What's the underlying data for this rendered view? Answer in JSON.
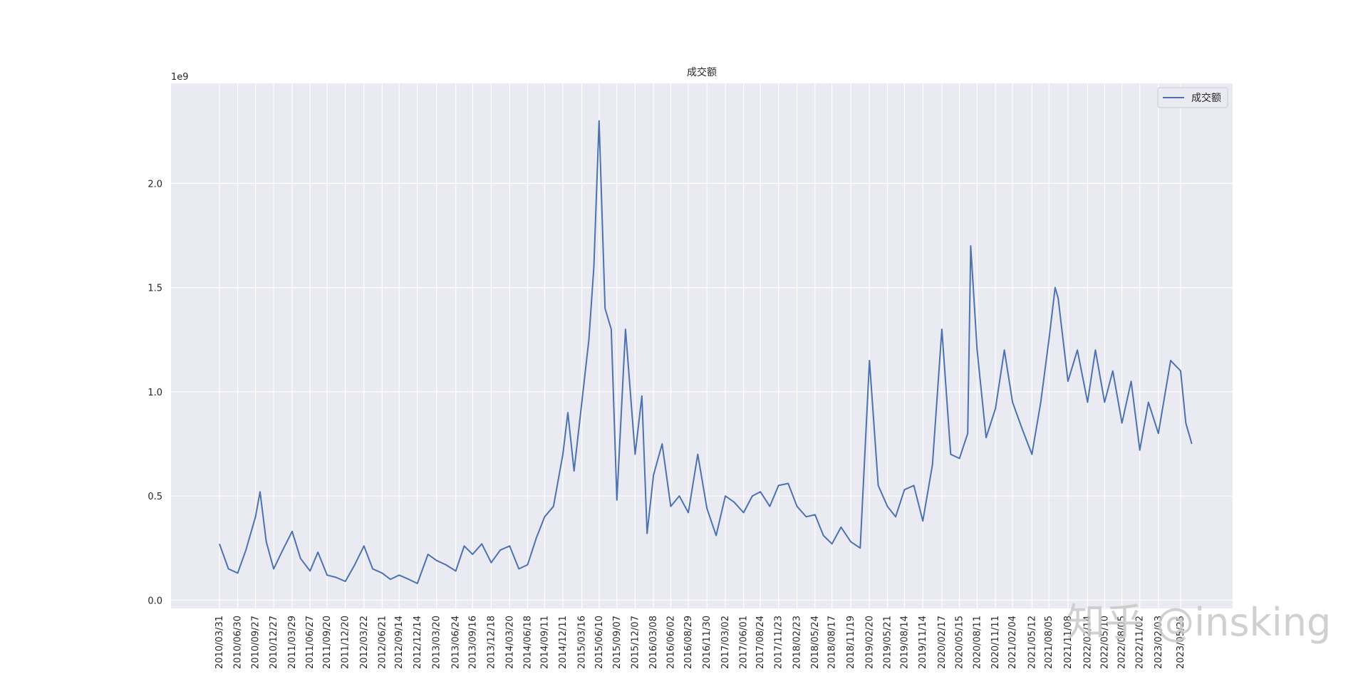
{
  "chart_data": {
    "type": "line",
    "title": "成交额",
    "xlabel": "",
    "ylabel": "",
    "y_offset_label": "1e9",
    "ylim": [
      -0.04,
      2.48
    ],
    "y_ticks": [
      0.0,
      0.5,
      1.0,
      1.5,
      2.0
    ],
    "y_tick_labels": [
      "0.0",
      "0.5",
      "1.0",
      "1.5",
      "2.0"
    ],
    "x_tick_labels": [
      "2010/03/31",
      "2010/06/30",
      "2010/09/27",
      "2010/12/27",
      "2011/03/29",
      "2011/06/27",
      "2011/09/20",
      "2011/12/20",
      "2012/03/22",
      "2012/06/21",
      "2012/09/14",
      "2012/12/14",
      "2013/03/20",
      "2013/06/24",
      "2013/09/16",
      "2013/12/18",
      "2014/03/20",
      "2014/06/18",
      "2014/09/11",
      "2014/12/11",
      "2015/03/16",
      "2015/06/10",
      "2015/09/07",
      "2015/12/07",
      "2016/03/08",
      "2016/06/02",
      "2016/08/29",
      "2016/11/30",
      "2017/03/02",
      "2017/06/01",
      "2017/08/24",
      "2017/11/23",
      "2018/02/23",
      "2018/05/24",
      "2018/08/17",
      "2018/11/19",
      "2019/02/20",
      "2019/05/21",
      "2019/08/14",
      "2019/11/14",
      "2020/02/17",
      "2020/05/15",
      "2020/08/11",
      "2020/11/11",
      "2021/02/04",
      "2021/05/12",
      "2021/08/05",
      "2021/11/08",
      "2022/02/14",
      "2022/05/10",
      "2022/08/05",
      "2022/11/02",
      "2023/02/03",
      "2023/05/25"
    ],
    "grid": true,
    "legend_position": "upper right",
    "series": [
      {
        "name": "成交额",
        "color": "#4c72b0",
        "x": [
          "2010/03/31",
          "2010/05/15",
          "2010/06/30",
          "2010/08/10",
          "2010/09/27",
          "2010/10/20",
          "2010/11/20",
          "2010/12/27",
          "2011/02/10",
          "2011/03/29",
          "2011/05/10",
          "2011/06/27",
          "2011/08/05",
          "2011/09/20",
          "2011/11/01",
          "2011/12/20",
          "2012/02/05",
          "2012/03/22",
          "2012/05/05",
          "2012/06/21",
          "2012/08/01",
          "2012/09/14",
          "2012/11/01",
          "2012/12/14",
          "2013/02/05",
          "2013/03/20",
          "2013/05/05",
          "2013/06/24",
          "2013/08/05",
          "2013/09/16",
          "2013/11/01",
          "2013/12/18",
          "2014/02/01",
          "2014/03/20",
          "2014/05/05",
          "2014/06/18",
          "2014/08/01",
          "2014/09/11",
          "2014/10/25",
          "2014/12/11",
          "2015/01/05",
          "2015/02/05",
          "2015/03/16",
          "2015/04/20",
          "2015/05/15",
          "2015/06/10",
          "2015/07/10",
          "2015/08/10",
          "2015/09/07",
          "2015/10/20",
          "2015/12/07",
          "2016/01/10",
          "2016/02/05",
          "2016/03/08",
          "2016/04/20",
          "2016/06/02",
          "2016/07/15",
          "2016/08/29",
          "2016/10/15",
          "2016/11/30",
          "2017/01/15",
          "2017/03/02",
          "2017/04/15",
          "2017/06/01",
          "2017/07/15",
          "2017/08/24",
          "2017/10/10",
          "2017/11/23",
          "2018/01/10",
          "2018/02/23",
          "2018/04/10",
          "2018/05/24",
          "2018/07/05",
          "2018/08/17",
          "2018/10/01",
          "2018/11/19",
          "2019/01/05",
          "2019/02/20",
          "2019/04/05",
          "2019/05/21",
          "2019/07/01",
          "2019/08/14",
          "2019/09/30",
          "2019/11/14",
          "2020/01/01",
          "2020/02/17",
          "2020/04/01",
          "2020/05/15",
          "2020/06/25",
          "2020/07/10",
          "2020/08/11",
          "2020/09/25",
          "2020/11/11",
          "2020/12/25",
          "2021/02/04",
          "2021/03/25",
          "2021/05/12",
          "2021/06/25",
          "2021/08/05",
          "2021/09/05",
          "2021/09/20",
          "2021/11/08",
          "2021/12/25",
          "2022/02/14",
          "2022/03/25",
          "2022/05/10",
          "2022/06/20",
          "2022/08/05",
          "2022/09/20",
          "2022/11/02",
          "2022/12/15",
          "2023/02/03",
          "2023/04/05",
          "2023/05/25",
          "2023/06/20",
          "2023/07/20"
        ],
        "values": [
          0.27,
          0.15,
          0.13,
          0.24,
          0.4,
          0.52,
          0.28,
          0.15,
          0.24,
          0.33,
          0.2,
          0.14,
          0.23,
          0.12,
          0.11,
          0.09,
          0.17,
          0.26,
          0.15,
          0.13,
          0.1,
          0.12,
          0.1,
          0.08,
          0.22,
          0.19,
          0.17,
          0.14,
          0.26,
          0.22,
          0.27,
          0.18,
          0.24,
          0.26,
          0.15,
          0.17,
          0.3,
          0.4,
          0.45,
          0.7,
          0.9,
          0.62,
          0.95,
          1.25,
          1.6,
          2.3,
          1.4,
          1.3,
          0.48,
          1.3,
          0.7,
          0.98,
          0.32,
          0.6,
          0.75,
          0.45,
          0.5,
          0.42,
          0.7,
          0.44,
          0.31,
          0.5,
          0.47,
          0.42,
          0.5,
          0.52,
          0.45,
          0.55,
          0.56,
          0.45,
          0.4,
          0.41,
          0.31,
          0.27,
          0.35,
          0.28,
          0.25,
          1.15,
          0.55,
          0.45,
          0.4,
          0.53,
          0.55,
          0.38,
          0.65,
          1.3,
          0.7,
          0.68,
          0.8,
          1.7,
          1.2,
          0.78,
          0.92,
          1.2,
          0.95,
          0.82,
          0.7,
          0.95,
          1.25,
          1.5,
          1.45,
          1.05,
          1.2,
          0.95,
          1.2,
          0.95,
          1.1,
          0.85,
          1.05,
          0.72,
          0.95,
          0.8,
          1.15,
          1.1,
          0.85,
          0.75
        ]
      }
    ]
  },
  "watermark": {
    "text": "知乎 @insking"
  }
}
